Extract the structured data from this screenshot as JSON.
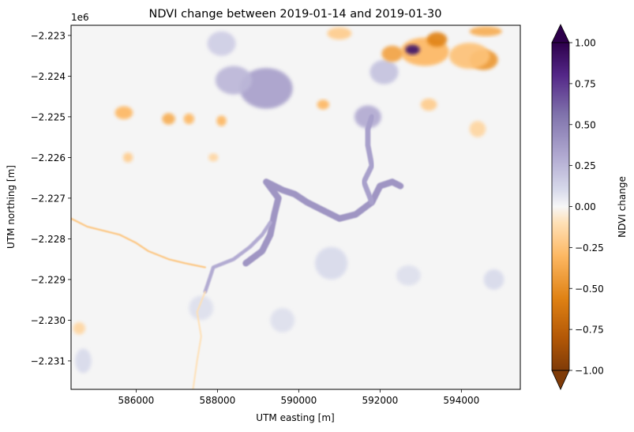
{
  "chart_data": {
    "type": "heatmap",
    "title": "NDVI change between 2019-01-14 and 2019-01-30",
    "xlabel": "UTM easting [m]",
    "ylabel": "UTM northing [m]",
    "y_offset_label": "1e6",
    "xlim": [
      584400,
      595450
    ],
    "ylim": [
      -2231700,
      -2222750
    ],
    "x_ticks": [
      586000,
      588000,
      590000,
      592000,
      594000
    ],
    "x_tick_labels": [
      "586000",
      "588000",
      "590000",
      "592000",
      "594000"
    ],
    "y_ticks": [
      -2.223,
      -2.224,
      -2.225,
      -2.226,
      -2.227,
      -2.228,
      -2.229,
      -2.23,
      -2.231
    ],
    "y_tick_labels": [
      "−2.223",
      "−2.224",
      "−2.225",
      "−2.226",
      "−2.227",
      "−2.228",
      "−2.229",
      "−2.230",
      "−2.231"
    ],
    "colorbar": {
      "label": "NDVI change",
      "colormap": "PuOr",
      "vmin": -1.0,
      "vmax": 1.0,
      "extend": "both",
      "ticks": [
        1.0,
        0.75,
        0.5,
        0.25,
        0.0,
        -0.25,
        -0.5,
        -0.75,
        -1.0
      ],
      "tick_labels": [
        "1.00",
        "0.75",
        "0.50",
        "0.25",
        "0.00",
        "−0.25",
        "−0.50",
        "−0.75",
        "−1.00"
      ]
    },
    "grid": false,
    "features": [
      {
        "kind": "blob",
        "x": 589200,
        "y": -2224300,
        "rx": 650,
        "ry": 500,
        "value": 0.35
      },
      {
        "kind": "blob",
        "x": 588400,
        "y": -2224100,
        "rx": 450,
        "ry": 350,
        "value": 0.25
      },
      {
        "kind": "blob",
        "x": 588100,
        "y": -2223200,
        "rx": 350,
        "ry": 300,
        "value": 0.15
      },
      {
        "kind": "blob",
        "x": 591700,
        "y": -2225000,
        "rx": 330,
        "ry": 280,
        "value": 0.3
      },
      {
        "kind": "blob",
        "x": 592100,
        "y": -2223900,
        "rx": 350,
        "ry": 300,
        "value": 0.2
      },
      {
        "kind": "blob",
        "x": 593100,
        "y": -2223400,
        "rx": 600,
        "ry": 350,
        "value": -0.3
      },
      {
        "kind": "blob",
        "x": 594550,
        "y": -2223600,
        "rx": 350,
        "ry": 250,
        "value": -0.45
      },
      {
        "kind": "blob",
        "x": 594200,
        "y": -2223500,
        "rx": 500,
        "ry": 320,
        "value": -0.25
      },
      {
        "kind": "blob",
        "x": 592800,
        "y": -2223350,
        "rx": 180,
        "ry": 120,
        "value": 0.9
      },
      {
        "kind": "blob",
        "x": 593400,
        "y": -2223100,
        "rx": 250,
        "ry": 180,
        "value": -0.55
      },
      {
        "kind": "blob",
        "x": 592300,
        "y": -2223450,
        "rx": 260,
        "ry": 200,
        "value": -0.4
      },
      {
        "kind": "blob",
        "x": 594600,
        "y": -2222900,
        "rx": 400,
        "ry": 120,
        "value": -0.35
      },
      {
        "kind": "blob",
        "x": 591000,
        "y": -2222950,
        "rx": 300,
        "ry": 150,
        "value": -0.2
      },
      {
        "kind": "blob",
        "x": 585700,
        "y": -2224900,
        "rx": 220,
        "ry": 160,
        "value": -0.3
      },
      {
        "kind": "blob",
        "x": 586800,
        "y": -2225050,
        "rx": 160,
        "ry": 140,
        "value": -0.35
      },
      {
        "kind": "blob",
        "x": 587300,
        "y": -2225050,
        "rx": 130,
        "ry": 130,
        "value": -0.3
      },
      {
        "kind": "blob",
        "x": 588100,
        "y": -2225100,
        "rx": 120,
        "ry": 130,
        "value": -0.3
      },
      {
        "kind": "blob",
        "x": 590600,
        "y": -2224700,
        "rx": 150,
        "ry": 120,
        "value": -0.3
      },
      {
        "kind": "blob",
        "x": 593200,
        "y": -2224700,
        "rx": 200,
        "ry": 150,
        "value": -0.2
      },
      {
        "kind": "blob",
        "x": 585800,
        "y": -2226000,
        "rx": 120,
        "ry": 120,
        "value": -0.2
      },
      {
        "kind": "blob",
        "x": 587900,
        "y": -2226000,
        "rx": 120,
        "ry": 100,
        "value": -0.15
      },
      {
        "kind": "blob",
        "x": 594400,
        "y": -2225300,
        "rx": 200,
        "ry": 200,
        "value": -0.15
      },
      {
        "kind": "blob",
        "x": 590800,
        "y": -2228600,
        "rx": 400,
        "ry": 400,
        "value": 0.1
      },
      {
        "kind": "blob",
        "x": 587600,
        "y": -2229700,
        "rx": 300,
        "ry": 300,
        "value": 0.08
      },
      {
        "kind": "blob",
        "x": 592700,
        "y": -2228900,
        "rx": 300,
        "ry": 250,
        "value": 0.08
      },
      {
        "kind": "blob",
        "x": 589600,
        "y": -2230000,
        "rx": 300,
        "ry": 300,
        "value": 0.08
      },
      {
        "kind": "blob",
        "x": 594800,
        "y": -2229000,
        "rx": 250,
        "ry": 250,
        "value": 0.1
      },
      {
        "kind": "blob",
        "x": 584700,
        "y": -2231000,
        "rx": 200,
        "ry": 300,
        "value": 0.1
      },
      {
        "kind": "blob",
        "x": 584600,
        "y": -2230200,
        "rx": 150,
        "ry": 150,
        "value": -0.15
      },
      {
        "kind": "path",
        "value": 0.4,
        "width_m": 160,
        "points": [
          [
            588700,
            -2228600
          ],
          [
            589100,
            -2228300
          ],
          [
            589300,
            -2227900
          ],
          [
            589400,
            -2227400
          ],
          [
            589500,
            -2227000
          ],
          [
            589200,
            -2226600
          ],
          [
            589600,
            -2226800
          ],
          [
            589900,
            -2226900
          ],
          [
            590200,
            -2227100
          ],
          [
            590600,
            -2227300
          ],
          [
            591000,
            -2227500
          ],
          [
            591400,
            -2227400
          ],
          [
            591800,
            -2227100
          ],
          [
            592000,
            -2226700
          ],
          [
            592300,
            -2226600
          ],
          [
            592500,
            -2226700
          ]
        ]
      },
      {
        "kind": "path",
        "value": 0.35,
        "width_m": 130,
        "points": [
          [
            591800,
            -2227100
          ],
          [
            591600,
            -2226600
          ],
          [
            591800,
            -2226200
          ],
          [
            591700,
            -2225700
          ],
          [
            591700,
            -2225300
          ],
          [
            591800,
            -2225000
          ]
        ]
      },
      {
        "kind": "path",
        "value": 0.3,
        "width_m": 90,
        "points": [
          [
            589300,
            -2227600
          ],
          [
            589100,
            -2227900
          ],
          [
            588800,
            -2228200
          ],
          [
            588400,
            -2228500
          ],
          [
            587900,
            -2228700
          ],
          [
            587800,
            -2229000
          ],
          [
            587700,
            -2229300
          ]
        ]
      },
      {
        "kind": "path",
        "value": -0.25,
        "width_m": 40,
        "points": [
          [
            584400,
            -2227500
          ],
          [
            584800,
            -2227700
          ],
          [
            585200,
            -2227800
          ],
          [
            585600,
            -2227900
          ],
          [
            586000,
            -2228100
          ],
          [
            586300,
            -2228300
          ],
          [
            586800,
            -2228500
          ],
          [
            587200,
            -2228600
          ],
          [
            587700,
            -2228700
          ]
        ]
      },
      {
        "kind": "path",
        "value": -0.1,
        "width_m": 40,
        "points": [
          [
            587700,
            -2229300
          ],
          [
            587500,
            -2229800
          ],
          [
            587600,
            -2230400
          ],
          [
            587500,
            -2231000
          ],
          [
            587400,
            -2231700
          ]
        ]
      }
    ]
  }
}
